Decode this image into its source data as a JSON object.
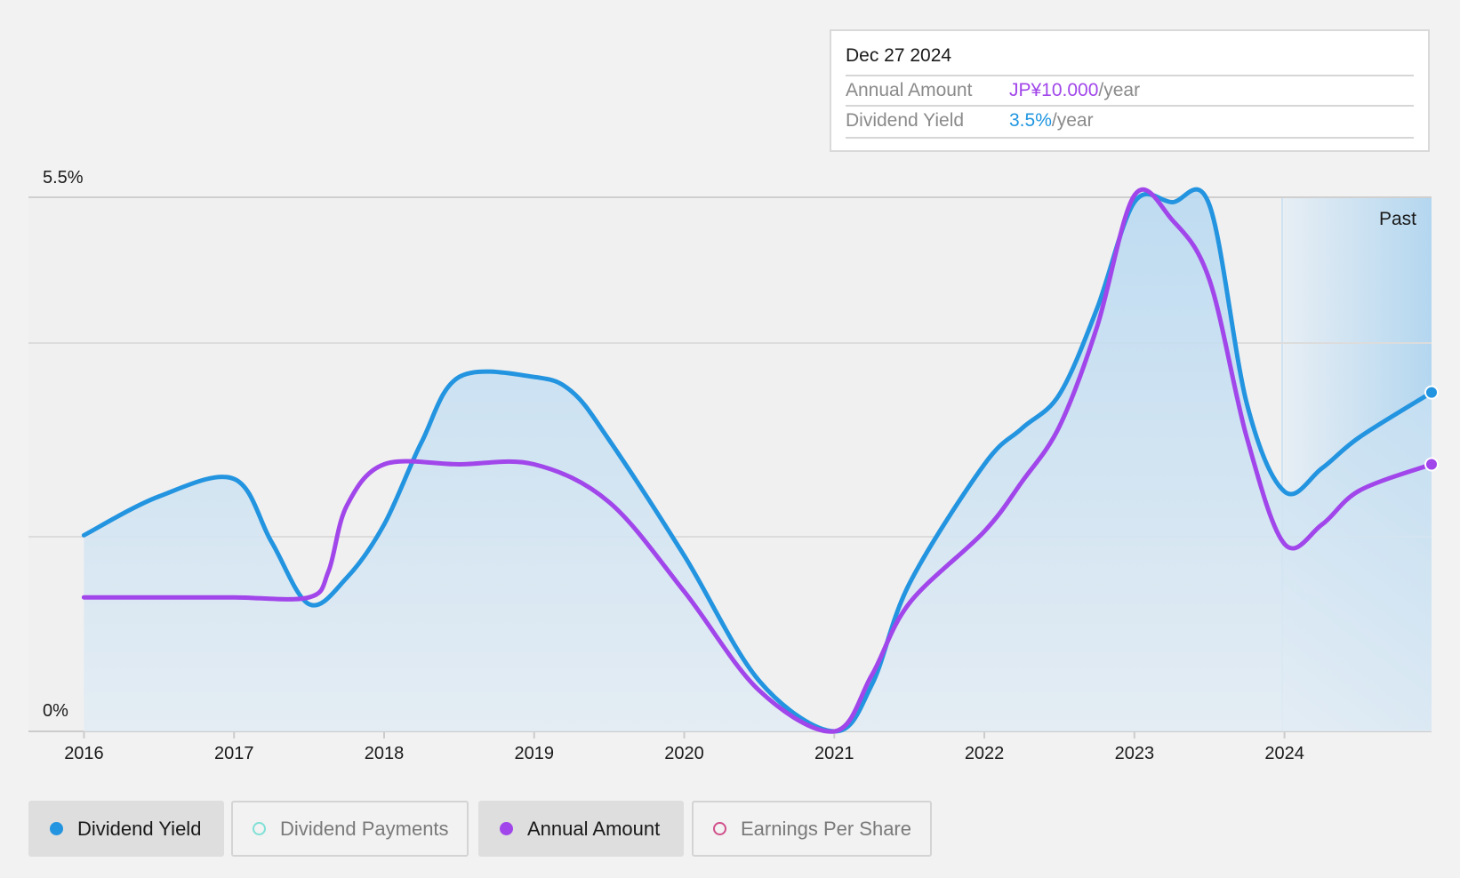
{
  "tooltip": {
    "date": "Dec 27 2024",
    "rows": [
      {
        "label": "Annual Amount",
        "value": "JP¥10.000",
        "unit": "/year",
        "color": "#a146ea"
      },
      {
        "label": "Dividend Yield",
        "value": "3.5%",
        "unit": "/year",
        "color": "#1f96e0"
      }
    ]
  },
  "past_label": "Past",
  "legend": [
    {
      "label": "Dividend Yield",
      "color": "#2394e0",
      "active": true
    },
    {
      "label": "Dividend Payments",
      "color": "#7fe0d6",
      "active": false
    },
    {
      "label": "Annual Amount",
      "color": "#a146ea",
      "active": true
    },
    {
      "label": "Earnings Per Share",
      "color": "#d0508a",
      "active": false
    }
  ],
  "chart_data": {
    "type": "line",
    "ytick_labels": [
      "5.5%",
      "0%"
    ],
    "ylim": [
      0,
      5.5
    ],
    "xlim": [
      2015.63,
      2024.98
    ],
    "x_ticks": [
      2016,
      2017,
      2018,
      2019,
      2020,
      2021,
      2022,
      2023,
      2024
    ],
    "grid": true,
    "series": [
      {
        "name": "Dividend Yield",
        "color": "#2394e0",
        "filled": true,
        "points": [
          [
            2016.0,
            2.02
          ],
          [
            2016.5,
            2.42
          ],
          [
            2017.0,
            2.6
          ],
          [
            2017.25,
            1.95
          ],
          [
            2017.5,
            1.31
          ],
          [
            2017.75,
            1.58
          ],
          [
            2018.0,
            2.13
          ],
          [
            2018.25,
            2.98
          ],
          [
            2018.5,
            3.65
          ],
          [
            2019.0,
            3.65
          ],
          [
            2019.25,
            3.5
          ],
          [
            2019.5,
            3.0
          ],
          [
            2020.0,
            1.81
          ],
          [
            2020.5,
            0.52
          ],
          [
            2021.0,
            0.0
          ],
          [
            2021.25,
            0.48
          ],
          [
            2021.5,
            1.52
          ],
          [
            2022.0,
            2.75
          ],
          [
            2022.25,
            3.12
          ],
          [
            2022.5,
            3.47
          ],
          [
            2022.75,
            4.35
          ],
          [
            2023.0,
            5.45
          ],
          [
            2023.25,
            5.45
          ],
          [
            2023.5,
            5.42
          ],
          [
            2023.75,
            3.37
          ],
          [
            2024.0,
            2.47
          ],
          [
            2024.25,
            2.71
          ],
          [
            2024.5,
            3.03
          ],
          [
            2024.98,
            3.49
          ]
        ]
      },
      {
        "name": "Annual Amount",
        "color": "#a146ea",
        "filled": false,
        "points": [
          [
            2016.0,
            1.38
          ],
          [
            2016.5,
            1.38
          ],
          [
            2017.0,
            1.38
          ],
          [
            2017.5,
            1.38
          ],
          [
            2017.63,
            1.65
          ],
          [
            2017.75,
            2.32
          ],
          [
            2018.0,
            2.75
          ],
          [
            2018.5,
            2.75
          ],
          [
            2019.0,
            2.75
          ],
          [
            2019.5,
            2.36
          ],
          [
            2020.0,
            1.44
          ],
          [
            2020.5,
            0.42
          ],
          [
            2021.0,
            0.0
          ],
          [
            2021.25,
            0.58
          ],
          [
            2021.5,
            1.32
          ],
          [
            2022.0,
            2.06
          ],
          [
            2022.25,
            2.57
          ],
          [
            2022.5,
            3.14
          ],
          [
            2022.75,
            4.16
          ],
          [
            2023.0,
            5.52
          ],
          [
            2023.25,
            5.27
          ],
          [
            2023.5,
            4.65
          ],
          [
            2023.75,
            3.02
          ],
          [
            2024.0,
            1.93
          ],
          [
            2024.25,
            2.13
          ],
          [
            2024.5,
            2.48
          ],
          [
            2024.98,
            2.75
          ]
        ]
      }
    ]
  }
}
